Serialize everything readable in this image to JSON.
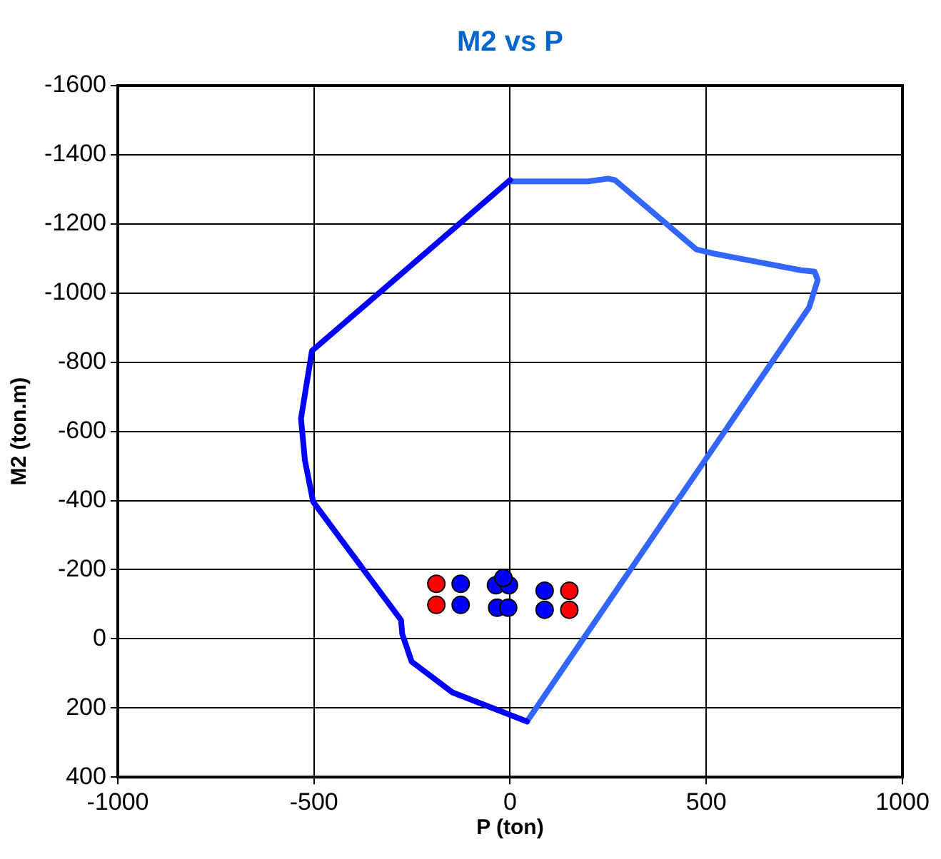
{
  "chart_data": {
    "type": "scatter",
    "title": "M2 vs P",
    "xlabel": "P (ton)",
    "ylabel": "M2 (ton.m)",
    "xlim": [
      -1000,
      1000
    ],
    "xticks": [
      -1000,
      -500,
      0,
      500,
      1000
    ],
    "ylim": [
      400,
      -1600
    ],
    "yticks": [
      400,
      200,
      0,
      -200,
      -400,
      -600,
      -800,
      -1000,
      -1200,
      -1400,
      -1600
    ],
    "grid": true,
    "legend": false,
    "series": [
      {
        "type": "line",
        "marker": "none",
        "color": "#0000ff",
        "x": [
          0,
          -505,
          -533,
          -523,
          -502,
          -278,
          -275,
          -251,
          -147,
          43
        ],
        "values": [
          -1327,
          -833,
          -637,
          -516,
          -396,
          -54,
          -14,
          66,
          155,
          239
        ]
      },
      {
        "type": "line",
        "marker": "none",
        "color": "#3366ff",
        "x": [
          43,
          762,
          784,
          776,
          741,
          520,
          475,
          267,
          250,
          199,
          0
        ],
        "values": [
          239,
          -958,
          -1038,
          -1062,
          -1066,
          -1114,
          -1126,
          -1327,
          -1331,
          -1323,
          -1323
        ]
      },
      {
        "type": "scatter",
        "marker": "circle",
        "color": "#ff0000",
        "x": [
          -188,
          -188,
          151,
          151
        ],
        "values": [
          -159,
          -98,
          -139,
          -84
        ]
      },
      {
        "type": "scatter",
        "marker": "circle",
        "color": "#0000ff",
        "x": [
          -126,
          -126,
          88,
          88,
          -36,
          -3,
          -33,
          -5,
          -17
        ],
        "values": [
          -159,
          -98,
          -139,
          -84,
          -155,
          -155,
          -90,
          -90,
          -176
        ]
      }
    ]
  }
}
